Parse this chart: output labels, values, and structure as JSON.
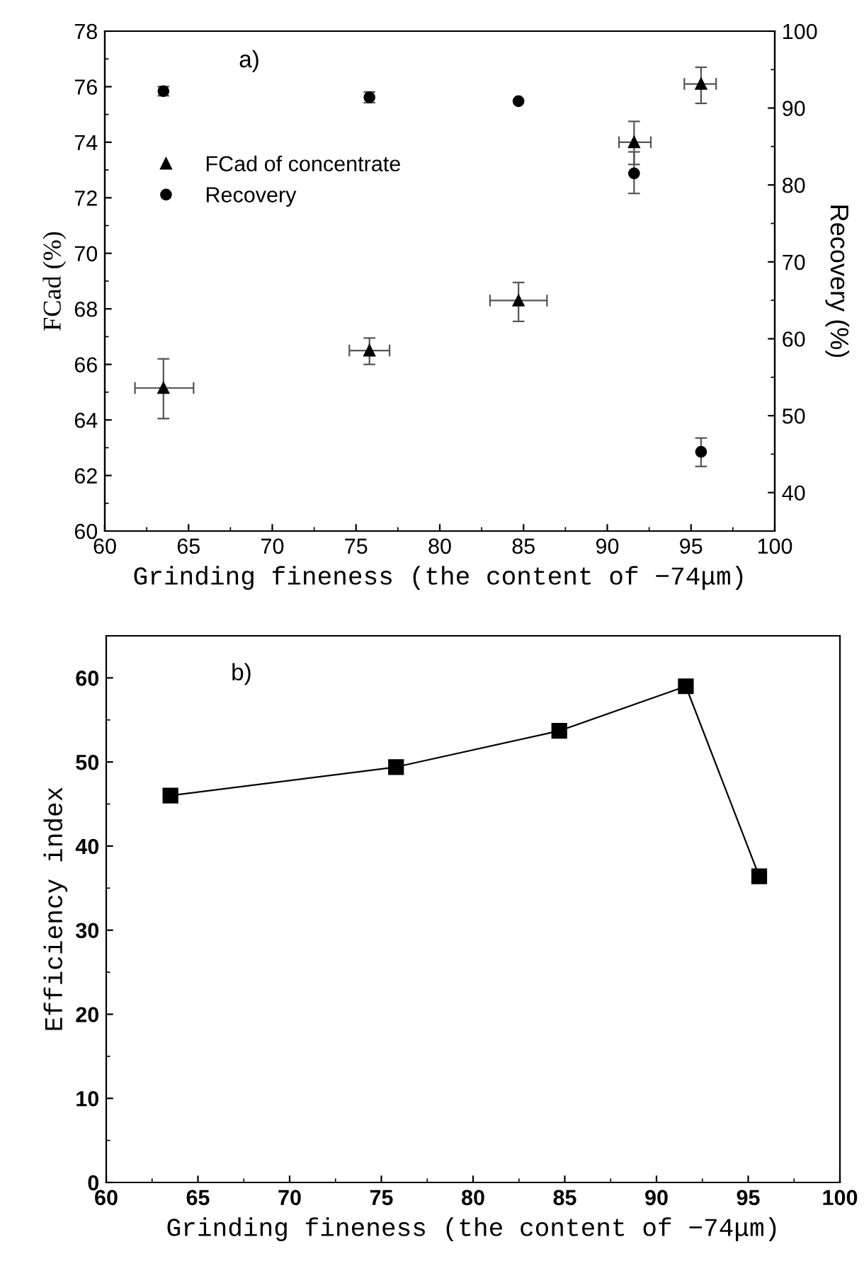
{
  "chart_data": [
    {
      "type": "scatter",
      "xlabel": "Grinding fineness (the content of −74μm)",
      "ylabel": "FCad (%)",
      "y2label": "Recovery (%)",
      "annotations": [
        "a)"
      ],
      "xlim": [
        60,
        100
      ],
      "xticks": [
        60,
        65,
        70,
        75,
        80,
        85,
        90,
        95,
        100
      ],
      "ylim": [
        60,
        78
      ],
      "yticks": [
        60,
        62,
        64,
        66,
        68,
        70,
        72,
        74,
        76,
        78
      ],
      "y2lim": [
        35,
        100
      ],
      "y2ticks": [
        40,
        50,
        60,
        70,
        80,
        90,
        100
      ],
      "legend": "left",
      "grid": false,
      "series": [
        {
          "name": "FCad of concentrate",
          "color": "#000000",
          "marker": "triangle",
          "x": [
            63.5,
            75.8,
            84.7,
            91.6,
            95.6
          ],
          "values": [
            65.15,
            66.5,
            68.3,
            74.0,
            76.1
          ],
          "errors": [
            [
              64.05,
              66.2
            ],
            [
              66.0,
              66.95
            ],
            [
              67.55,
              68.95
            ],
            [
              73.2,
              74.75
            ],
            [
              75.4,
              76.7
            ]
          ],
          "xerrors": [
            [
              61.8,
              65.3
            ],
            [
              74.6,
              77.0
            ],
            [
              83.0,
              86.4
            ],
            [
              90.7,
              92.6
            ],
            [
              94.6,
              96.5
            ]
          ]
        },
        {
          "name": "Recovery",
          "color": "#000000",
          "marker": "circle",
          "axis": "y2",
          "x": [
            63.5,
            75.8,
            84.7,
            91.6,
            95.6
          ],
          "values": [
            92.2,
            91.4,
            90.9,
            81.5,
            45.3
          ],
          "errors": [
            [
              91.6,
              92.8
            ],
            [
              90.7,
              92.1
            ],
            null,
            [
              78.9,
              84.3
            ],
            [
              43.4,
              47.1
            ]
          ]
        }
      ]
    },
    {
      "type": "line",
      "xlabel": "Grinding fineness (the content of −74μm)",
      "ylabel": "Efficiency index",
      "annotations": [
        "b)"
      ],
      "xlim": [
        60,
        100
      ],
      "xticks": [
        60,
        65,
        70,
        75,
        80,
        85,
        90,
        95,
        100
      ],
      "ylim": [
        0,
        65
      ],
      "yticks": [
        0,
        10,
        20,
        30,
        40,
        50,
        60
      ],
      "marker": "square",
      "line_style": "solid",
      "grid": false,
      "legend": false,
      "series": [
        {
          "color": "#000000",
          "x": [
            63.5,
            75.8,
            84.7,
            91.6,
            95.6
          ],
          "values": [
            46.0,
            49.4,
            53.7,
            59.0,
            36.4
          ]
        }
      ]
    }
  ]
}
